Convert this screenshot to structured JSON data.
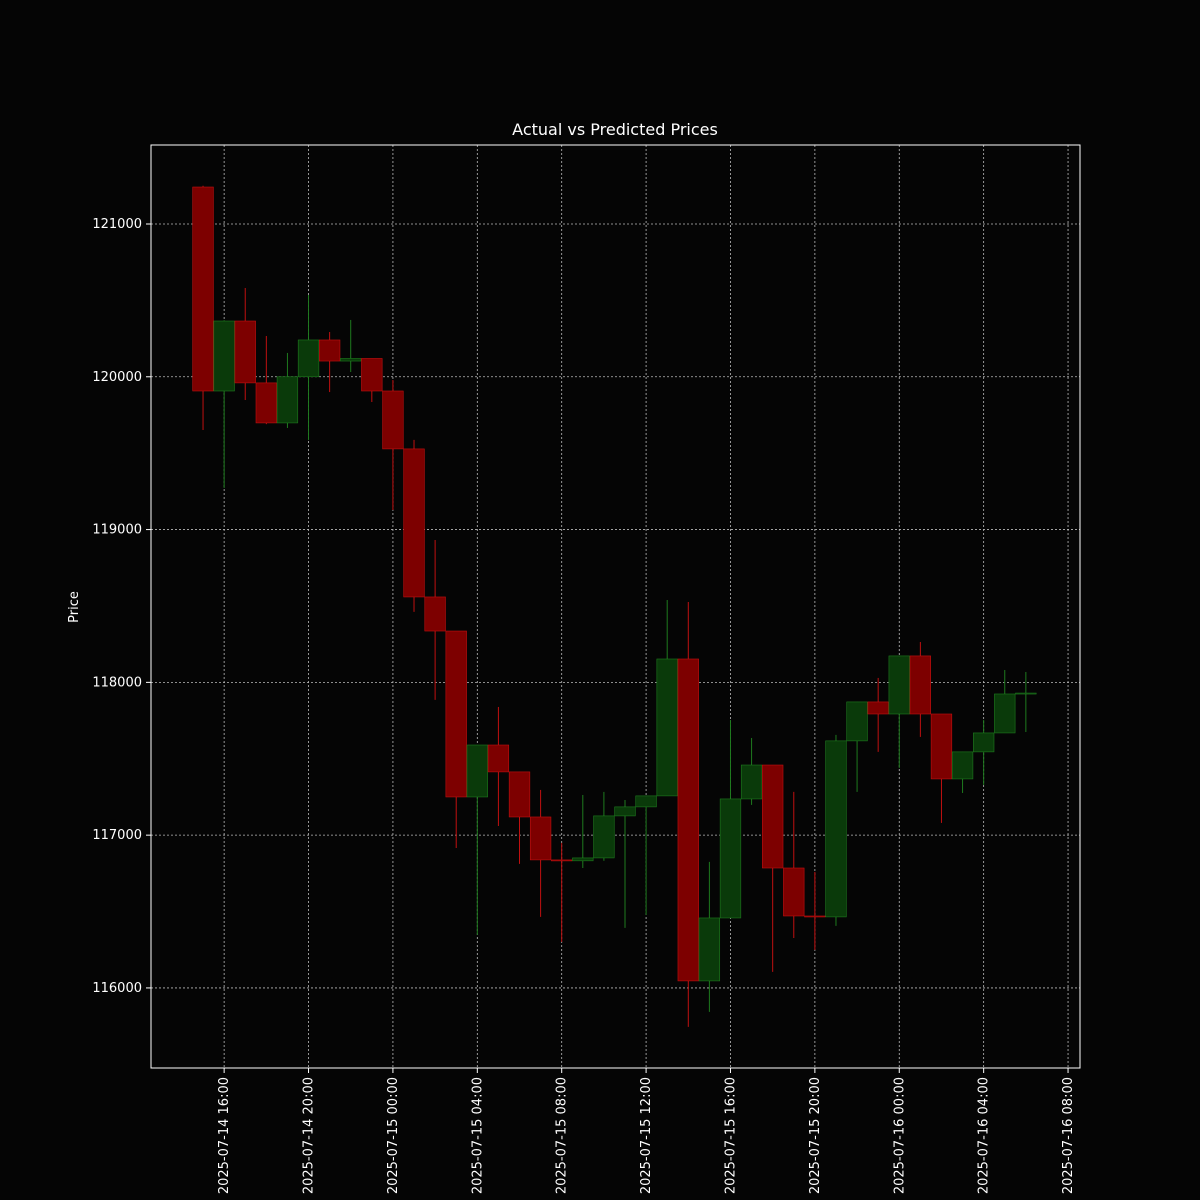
{
  "chart_data": {
    "type": "candlestick",
    "title": "Actual vs Predicted Prices",
    "y_label": "Price",
    "x": [
      "2025-07-14 15:00",
      "2025-07-14 16:00",
      "2025-07-14 17:00",
      "2025-07-14 18:00",
      "2025-07-14 19:00",
      "2025-07-14 20:00",
      "2025-07-14 21:00",
      "2025-07-14 22:00",
      "2025-07-14 23:00",
      "2025-07-15 00:00",
      "2025-07-15 01:00",
      "2025-07-15 02:00",
      "2025-07-15 03:00",
      "2025-07-15 04:00",
      "2025-07-15 05:00",
      "2025-07-15 06:00",
      "2025-07-15 07:00",
      "2025-07-15 08:00",
      "2025-07-15 09:00",
      "2025-07-15 10:00",
      "2025-07-15 11:00",
      "2025-07-15 12:00",
      "2025-07-15 13:00",
      "2025-07-15 14:00",
      "2025-07-15 15:00",
      "2025-07-15 16:00",
      "2025-07-15 17:00",
      "2025-07-15 18:00",
      "2025-07-15 19:00",
      "2025-07-15 20:00",
      "2025-07-15 21:00",
      "2025-07-15 22:00",
      "2025-07-15 23:00",
      "2025-07-16 00:00",
      "2025-07-16 01:00",
      "2025-07-16 02:00",
      "2025-07-16 03:00",
      "2025-07-16 04:00",
      "2025-07-16 05:00",
      "2025-07-16 06:00"
    ],
    "open": [
      121242,
      119907,
      120365,
      119960,
      119698,
      120000,
      120241,
      120103,
      120120,
      119907,
      119528,
      118559,
      118336,
      117250,
      117590,
      117414,
      117119,
      116838,
      116832,
      116851,
      117126,
      117185,
      117257,
      118153,
      116046,
      116458,
      117237,
      117459,
      116785,
      116471,
      116465,
      117617,
      117872,
      117793,
      118173,
      117793,
      117368,
      117545,
      117669,
      117924
    ],
    "high": [
      121250,
      120370,
      120581,
      120267,
      120156,
      120535,
      120293,
      120372,
      120120,
      119979,
      119587,
      118932,
      118336,
      117590,
      117839,
      117414,
      117296,
      116949,
      117263,
      117283,
      117230,
      117257,
      118539,
      118526,
      116825,
      117754,
      117636,
      117459,
      117283,
      116759,
      117656,
      117872,
      118029,
      118173,
      118264,
      117793,
      117545,
      117754,
      118081,
      118068
    ],
    "low": [
      119652,
      119272,
      119848,
      119690,
      119665,
      119586,
      119900,
      120031,
      119835,
      119128,
      118461,
      117885,
      116916,
      116347,
      117060,
      116812,
      116465,
      116301,
      116785,
      116832,
      116393,
      116478,
      117257,
      115745,
      115843,
      116458,
      117198,
      116105,
      116327,
      116249,
      116406,
      117283,
      117545,
      117440,
      117643,
      117080,
      117276,
      117329,
      117669,
      117675
    ],
    "close": [
      119907,
      120365,
      119960,
      119698,
      120000,
      120241,
      120103,
      120120,
      119907,
      119528,
      118559,
      118336,
      117250,
      117590,
      117414,
      117119,
      116838,
      116832,
      116851,
      117126,
      117185,
      117257,
      118153,
      116046,
      116458,
      117237,
      117459,
      116785,
      116471,
      116465,
      117617,
      117872,
      117793,
      118173,
      117793,
      117368,
      117545,
      117669,
      117924,
      117930
    ],
    "up_color": "#0a3a0a",
    "up_edge": "#1e7a1e",
    "down_color": "#7d0000",
    "down_edge": "#c01010",
    "ylim": [
      115476,
      121517
    ],
    "yticks": [
      116000,
      117000,
      118000,
      119000,
      120000,
      121000
    ],
    "xlim": [
      "2025-07-14 12:32",
      "2025-07-16 08:34"
    ],
    "xticks": [
      "2025-07-14 16:00",
      "2025-07-14 20:00",
      "2025-07-15 00:00",
      "2025-07-15 04:00",
      "2025-07-15 08:00",
      "2025-07-15 12:00",
      "2025-07-15 16:00",
      "2025-07-15 20:00",
      "2025-07-16 00:00",
      "2025-07-16 04:00",
      "2025-07-16 08:00"
    ],
    "grid": true
  }
}
